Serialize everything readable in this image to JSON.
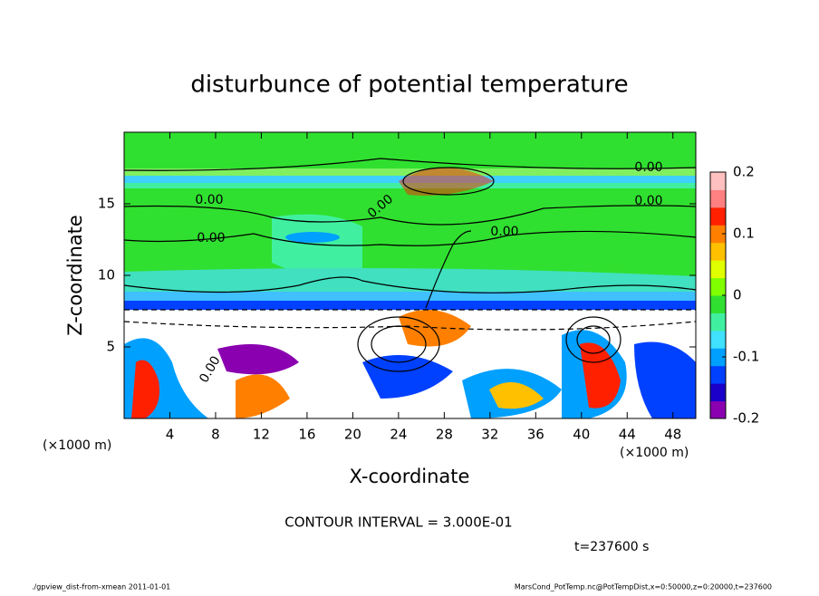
{
  "chart_data": {
    "type": "contour",
    "title": "disturbunce of potential temperature",
    "xlabel": "X-coordinate",
    "ylabel": "Z-coordinate",
    "x_unit": "(×1000 m)",
    "x_unit_right": "(×1000 m)",
    "xlim": [
      0,
      50
    ],
    "ylim": [
      0,
      20
    ],
    "xticks": [
      4,
      8,
      12,
      16,
      20,
      24,
      28,
      32,
      36,
      40,
      44,
      48
    ],
    "yticks": [
      5,
      10,
      15
    ],
    "clim": [
      -0.2,
      0.2
    ],
    "cticks": [
      0.2,
      0.1,
      0,
      -0.1,
      -0.2
    ],
    "colorbar_colors": [
      "#8a00b0",
      "#1a00c8",
      "#0040ff",
      "#00a0ff",
      "#40e0ff",
      "#40f0a0",
      "#30e030",
      "#80ff00",
      "#e0ff00",
      "#ffc000",
      "#ff8000",
      "#ff2000",
      "#ff8080",
      "#ffc0c0"
    ],
    "contour_labels": [
      "0.00",
      "0.00",
      "0.00",
      "0.00",
      "0.00",
      "0.00",
      "0.00"
    ],
    "contour_interval": "CONTOUR INTERVAL = 3.000E-01",
    "time_label": "t=237600 s",
    "footer_left": "./gpview_dist-from-xmean  2011-01-01",
    "footer_right": "MarsCond_PotTemp.nc@PotTempDist,x=0:50000,z=0:20000,t=237600"
  }
}
